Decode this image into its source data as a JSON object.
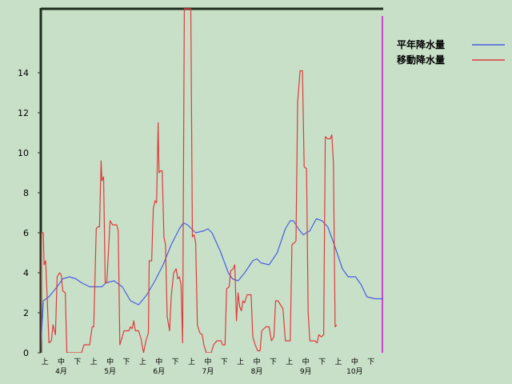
{
  "chart_data": {
    "type": "line",
    "ylim": [
      0,
      17.2
    ],
    "yticks": [
      0,
      2,
      4,
      6,
      8,
      10,
      12,
      14
    ],
    "x_range": [
      0,
      42
    ],
    "period_labels": [
      "上",
      "中",
      "下",
      "上",
      "中",
      "下",
      "上",
      "中",
      "下",
      "上",
      "中",
      "下",
      "上",
      "中",
      "下",
      "上",
      "中",
      "下",
      "上",
      "中",
      "下"
    ],
    "month_labels": [
      {
        "label": "4月",
        "x": 2.5
      },
      {
        "label": "5月",
        "x": 8.5
      },
      {
        "label": "6月",
        "x": 14.5
      },
      {
        "label": "7月",
        "x": 20.5
      },
      {
        "label": "8月",
        "x": 26.5
      },
      {
        "label": "9月",
        "x": 32.5
      },
      {
        "label": "10月",
        "x": 38.5
      }
    ],
    "marker_x": 41.9,
    "series": [
      {
        "name": "平年降水量",
        "color": "#4a5ee0",
        "points": [
          [
            0,
            0.2
          ],
          [
            0.3,
            2.6
          ],
          [
            1,
            2.8
          ],
          [
            2,
            3.3
          ],
          [
            2.7,
            3.7
          ],
          [
            3.5,
            3.8
          ],
          [
            4.3,
            3.7
          ],
          [
            5,
            3.5
          ],
          [
            6,
            3.3
          ],
          [
            7.5,
            3.3
          ],
          [
            8,
            3.5
          ],
          [
            9,
            3.6
          ],
          [
            10,
            3.3
          ],
          [
            11,
            2.6
          ],
          [
            12,
            2.4
          ],
          [
            13,
            2.9
          ],
          [
            14,
            3.6
          ],
          [
            15,
            4.4
          ],
          [
            16,
            5.4
          ],
          [
            17,
            6.2
          ],
          [
            17.5,
            6.5
          ],
          [
            18,
            6.4
          ],
          [
            19,
            6.0
          ],
          [
            20,
            6.1
          ],
          [
            20.5,
            6.2
          ],
          [
            21,
            6.0
          ],
          [
            22,
            5.1
          ],
          [
            23,
            4.0
          ],
          [
            23.5,
            3.7
          ],
          [
            24.2,
            3.6
          ],
          [
            25,
            4.0
          ],
          [
            26,
            4.6
          ],
          [
            26.5,
            4.7
          ],
          [
            27,
            4.5
          ],
          [
            28,
            4.4
          ],
          [
            29,
            5.0
          ],
          [
            30,
            6.2
          ],
          [
            30.6,
            6.6
          ],
          [
            31,
            6.6
          ],
          [
            31.6,
            6.2
          ],
          [
            32.2,
            5.9
          ],
          [
            33,
            6.1
          ],
          [
            33.8,
            6.7
          ],
          [
            34.5,
            6.6
          ],
          [
            35.2,
            6.3
          ],
          [
            36,
            5.4
          ],
          [
            37,
            4.2
          ],
          [
            37.7,
            3.8
          ],
          [
            38.6,
            3.8
          ],
          [
            39.3,
            3.4
          ],
          [
            40,
            2.8
          ],
          [
            41,
            2.7
          ],
          [
            42,
            2.7
          ]
        ]
      },
      {
        "name": "移動降水量",
        "color": "#e03a3a",
        "points": [
          [
            0,
            0
          ],
          [
            0.1,
            6.0
          ],
          [
            0.3,
            6.0
          ],
          [
            0.4,
            4.4
          ],
          [
            0.6,
            4.6
          ],
          [
            0.8,
            2.5
          ],
          [
            1,
            0.5
          ],
          [
            1.3,
            0.6
          ],
          [
            1.5,
            1.4
          ],
          [
            1.8,
            0.9
          ],
          [
            2,
            3.8
          ],
          [
            2.3,
            4.0
          ],
          [
            2.5,
            3.9
          ],
          [
            2.7,
            3.1
          ],
          [
            3,
            3.0
          ],
          [
            3.1,
            1.5
          ],
          [
            3.2,
            0
          ],
          [
            4,
            0
          ],
          [
            4.5,
            0
          ],
          [
            5,
            0
          ],
          [
            5.3,
            0.4
          ],
          [
            6,
            0.4
          ],
          [
            6.3,
            1.3
          ],
          [
            6.5,
            1.3
          ],
          [
            6.8,
            6.2
          ],
          [
            7,
            6.3
          ],
          [
            7.2,
            6.3
          ],
          [
            7.4,
            9.6
          ],
          [
            7.5,
            8.6
          ],
          [
            7.7,
            8.8
          ],
          [
            7.9,
            3.5
          ],
          [
            8.1,
            3.5
          ],
          [
            8.5,
            6.6
          ],
          [
            8.8,
            6.4
          ],
          [
            9.3,
            6.4
          ],
          [
            9.5,
            6.1
          ],
          [
            9.7,
            0.4
          ],
          [
            10,
            0.8
          ],
          [
            10.2,
            1.1
          ],
          [
            10.8,
            1.1
          ],
          [
            11,
            1.3
          ],
          [
            11.2,
            1.2
          ],
          [
            11.4,
            1.6
          ],
          [
            11.6,
            1.1
          ],
          [
            12,
            1.1
          ],
          [
            12.3,
            0.7
          ],
          [
            12.6,
            0
          ],
          [
            12.9,
            0.6
          ],
          [
            13.2,
            1.0
          ],
          [
            13.3,
            4.6
          ],
          [
            13.6,
            4.6
          ],
          [
            13.8,
            7.2
          ],
          [
            14,
            7.6
          ],
          [
            14.2,
            7.5
          ],
          [
            14.4,
            11.5
          ],
          [
            14.5,
            9.0
          ],
          [
            14.7,
            9.1
          ],
          [
            14.9,
            9.1
          ],
          [
            15.1,
            5.8
          ],
          [
            15.3,
            5.4
          ],
          [
            15.5,
            1.8
          ],
          [
            15.8,
            1.1
          ],
          [
            16,
            2.8
          ],
          [
            16.3,
            4.0
          ],
          [
            16.6,
            4.2
          ],
          [
            16.8,
            3.7
          ],
          [
            17,
            3.8
          ],
          [
            17.2,
            3.4
          ],
          [
            17.4,
            0.5
          ],
          [
            17.6,
            17.2
          ],
          [
            17.8,
            17.2
          ],
          [
            18.4,
            17.2
          ],
          [
            18.6,
            5.8
          ],
          [
            18.8,
            5.9
          ],
          [
            19,
            5.5
          ],
          [
            19.2,
            1.4
          ],
          [
            19.5,
            1.0
          ],
          [
            19.8,
            0.9
          ],
          [
            20,
            0.4
          ],
          [
            20.3,
            0
          ],
          [
            20.9,
            0
          ],
          [
            21.2,
            0.4
          ],
          [
            21.6,
            0.6
          ],
          [
            22.1,
            0.6
          ],
          [
            22.3,
            0.4
          ],
          [
            22.6,
            0.4
          ],
          [
            22.8,
            3.2
          ],
          [
            23.1,
            3.3
          ],
          [
            23.3,
            4.1
          ],
          [
            23.6,
            4.2
          ],
          [
            23.8,
            4.4
          ],
          [
            24.0,
            1.6
          ],
          [
            24.2,
            3.0
          ],
          [
            24.4,
            2.3
          ],
          [
            24.6,
            2.1
          ],
          [
            24.8,
            2.6
          ],
          [
            25,
            2.5
          ],
          [
            25.3,
            2.9
          ],
          [
            25.8,
            2.9
          ],
          [
            26,
            0.8
          ],
          [
            26.3,
            0.4
          ],
          [
            26.6,
            0.1
          ],
          [
            26.9,
            0.1
          ],
          [
            27.1,
            1.1
          ],
          [
            27.6,
            1.3
          ],
          [
            28,
            1.3
          ],
          [
            28.3,
            0.6
          ],
          [
            28.6,
            0.8
          ],
          [
            28.8,
            2.6
          ],
          [
            29.1,
            2.6
          ],
          [
            29.4,
            2.4
          ],
          [
            29.7,
            2.2
          ],
          [
            30,
            0.6
          ],
          [
            30.3,
            0.6
          ],
          [
            30.6,
            0.6
          ],
          [
            30.8,
            5.4
          ],
          [
            31.1,
            5.5
          ],
          [
            31.3,
            5.6
          ],
          [
            31.5,
            12.5
          ],
          [
            31.8,
            14.1
          ],
          [
            32.1,
            14.1
          ],
          [
            32.3,
            9.3
          ],
          [
            32.6,
            9.2
          ],
          [
            32.8,
            2.0
          ],
          [
            33,
            0.6
          ],
          [
            33.3,
            0.6
          ],
          [
            33.6,
            0.6
          ],
          [
            33.9,
            0.5
          ],
          [
            34.1,
            0.9
          ],
          [
            34.4,
            0.8
          ],
          [
            34.7,
            0.9
          ],
          [
            34.9,
            10.8
          ],
          [
            35.2,
            10.7
          ],
          [
            35.5,
            10.7
          ],
          [
            35.7,
            10.9
          ],
          [
            35.9,
            9.5
          ],
          [
            36.1,
            1.3
          ],
          [
            36.3,
            1.4
          ]
        ]
      }
    ]
  }
}
